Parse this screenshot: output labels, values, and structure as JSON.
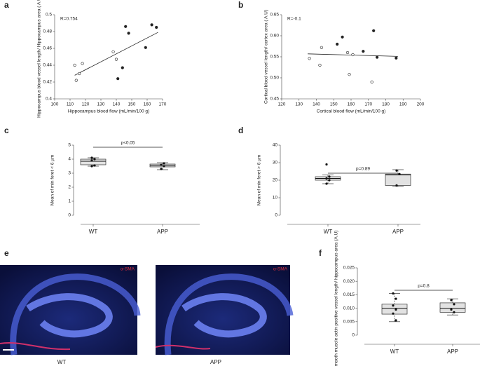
{
  "chart_data": [
    {
      "type": "scatter",
      "label": "a",
      "annotation": "R=0.754",
      "x_label": "Hippocampus blood flow (mL/min/100 g)",
      "y_label": "Hippocampus blood vessel length/ Hippocampus area ( A.U)",
      "xlim": [
        100,
        170
      ],
      "xticks": [
        100,
        110,
        120,
        130,
        140,
        150,
        160,
        170
      ],
      "ylim": [
        0.4,
        0.5
      ],
      "yticks": [
        0.4,
        0.42,
        0.44,
        0.46,
        0.48,
        0.5
      ],
      "series": [
        {
          "marker": "open",
          "color": "#222",
          "x": [
            113,
            114,
            116,
            118,
            138,
            140
          ],
          "values": [
            0.44,
            0.422,
            0.43,
            0.442,
            0.456,
            0.447
          ]
        },
        {
          "marker": "filled",
          "color": "#222",
          "x": [
            141,
            144,
            146,
            148,
            159,
            163,
            166
          ],
          "values": [
            0.424,
            0.437,
            0.486,
            0.478,
            0.461,
            0.488,
            0.485
          ]
        }
      ],
      "fit": {
        "x": [
          113,
          167
        ],
        "y": [
          0.428,
          0.479
        ]
      }
    },
    {
      "type": "scatter",
      "label": "b",
      "annotation": "R=-0.1",
      "x_label": "Cortical blood flow (mL/min/100 g)",
      "y_label": "Cortical blood vessel length/ cortex area ( A.U)",
      "xlim": [
        120,
        200
      ],
      "xticks": [
        120,
        130,
        140,
        150,
        160,
        170,
        180,
        190,
        200
      ],
      "ylim": [
        0.45,
        0.65
      ],
      "yticks": [
        0.45,
        {
          "value": 0.5,
          "label": "0.50"
        },
        0.55,
        {
          "value": 0.6,
          "label": "0.60"
        },
        0.65
      ],
      "series": [
        {
          "marker": "open",
          "color": "#222",
          "x": [
            136,
            142,
            143,
            158,
            159,
            161,
            172
          ],
          "values": [
            0.546,
            0.53,
            0.572,
            0.56,
            0.508,
            0.555,
            0.49
          ]
        },
        {
          "marker": "filled",
          "color": "#222",
          "x": [
            152,
            155,
            167,
            173,
            175,
            186
          ],
          "values": [
            0.58,
            0.597,
            0.563,
            0.612,
            0.549,
            0.547
          ]
        }
      ],
      "fit": {
        "x": [
          135,
          187
        ],
        "y": [
          0.557,
          0.551
        ]
      }
    },
    {
      "type": "box",
      "label": "c",
      "annotation": "p<0.05",
      "y_label": "Mean of min feret < 6 µm",
      "categories": [
        "WT",
        "APP"
      ],
      "ylim": [
        0,
        5
      ],
      "yticks": [
        0,
        1,
        2,
        3,
        4,
        5
      ],
      "boxes": [
        {
          "q1": 3.6,
          "median": 3.85,
          "q3": 4.0,
          "whisker_low": 3.5,
          "whisker_high": 4.1,
          "points": [
            3.5,
            3.55,
            3.9,
            4.0,
            4.1
          ]
        },
        {
          "q1": 3.45,
          "median": 3.55,
          "q3": 3.65,
          "whisker_low": 3.25,
          "whisker_high": 3.75,
          "points": [
            3.3,
            3.5,
            3.6,
            3.7
          ]
        }
      ]
    },
    {
      "type": "box",
      "label": "d",
      "annotation": "p=0.89",
      "y_label": "Mean of  min feret > 6 µm",
      "categories": [
        "WT",
        "APP"
      ],
      "ylim": [
        0,
        40
      ],
      "yticks": [
        0,
        10,
        20,
        30,
        40
      ],
      "boxes": [
        {
          "q1": 20,
          "median": 21,
          "q3": 22,
          "whisker_low": 18,
          "whisker_high": 23,
          "points": [
            29,
            22,
            21,
            20,
            18
          ]
        },
        {
          "q1": 17,
          "median": 23,
          "q3": 23.5,
          "whisker_low": 16.5,
          "whisker_high": 26,
          "points": [
            25.5,
            23.5,
            17
          ]
        }
      ]
    },
    {
      "type": "box",
      "label": "f",
      "annotation": "p=0.8",
      "y_label": "α-smooth muscle actin positive vessel length/ hippocampus area (A.U)",
      "categories": [
        "WT",
        "APP"
      ],
      "ylim": [
        0,
        0.025
      ],
      "yticks": [
        0,
        0.005,
        {
          "value": 0.01,
          "label": "0.010"
        },
        0.015,
        {
          "value": 0.02,
          "label": "0.020"
        },
        0.025
      ],
      "boxes": [
        {
          "q1": 0.0078,
          "median": 0.01,
          "q3": 0.0115,
          "whisker_low": 0.005,
          "whisker_high": 0.0155,
          "points": [
            0.0155,
            0.0135,
            0.011,
            0.0095,
            0.008,
            0.0055
          ]
        },
        {
          "q1": 0.0085,
          "median": 0.01,
          "q3": 0.012,
          "whisker_low": 0.0075,
          "whisker_high": 0.0135,
          "points": [
            0.013,
            0.0115,
            0.0095,
            0.0085
          ]
        }
      ]
    }
  ],
  "image_panel": {
    "label": "e",
    "stain": "α-SMA",
    "captions": [
      "WT",
      "APP"
    ]
  }
}
